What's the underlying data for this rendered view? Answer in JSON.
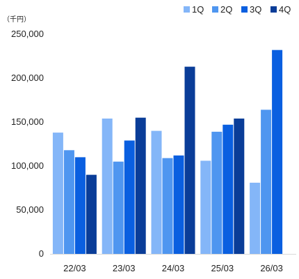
{
  "chart_data": {
    "type": "bar",
    "unit_label": "（千円）",
    "categories": [
      "22/03",
      "23/03",
      "24/03",
      "25/03",
      "26/03"
    ],
    "series": [
      {
        "name": "1Q",
        "color": "#84b6f8",
        "values": [
          138000,
          154000,
          140000,
          106000,
          81000
        ]
      },
      {
        "name": "2Q",
        "color": "#4f96f0",
        "values": [
          118000,
          105000,
          109000,
          139000,
          164000
        ]
      },
      {
        "name": "3Q",
        "color": "#0a5fe0",
        "values": [
          110000,
          129000,
          112000,
          147000,
          232000
        ]
      },
      {
        "name": "4Q",
        "color": "#0a3d98",
        "values": [
          90000,
          155000,
          213000,
          154000,
          null
        ]
      }
    ],
    "ylim": [
      0,
      250000
    ],
    "yticks": [
      0,
      50000,
      100000,
      150000,
      200000,
      250000
    ],
    "ytick_labels": [
      "0",
      "50,000",
      "100,000",
      "150,000",
      "200,000",
      "250,000"
    ],
    "grid": false,
    "legend_position": "top-right"
  }
}
